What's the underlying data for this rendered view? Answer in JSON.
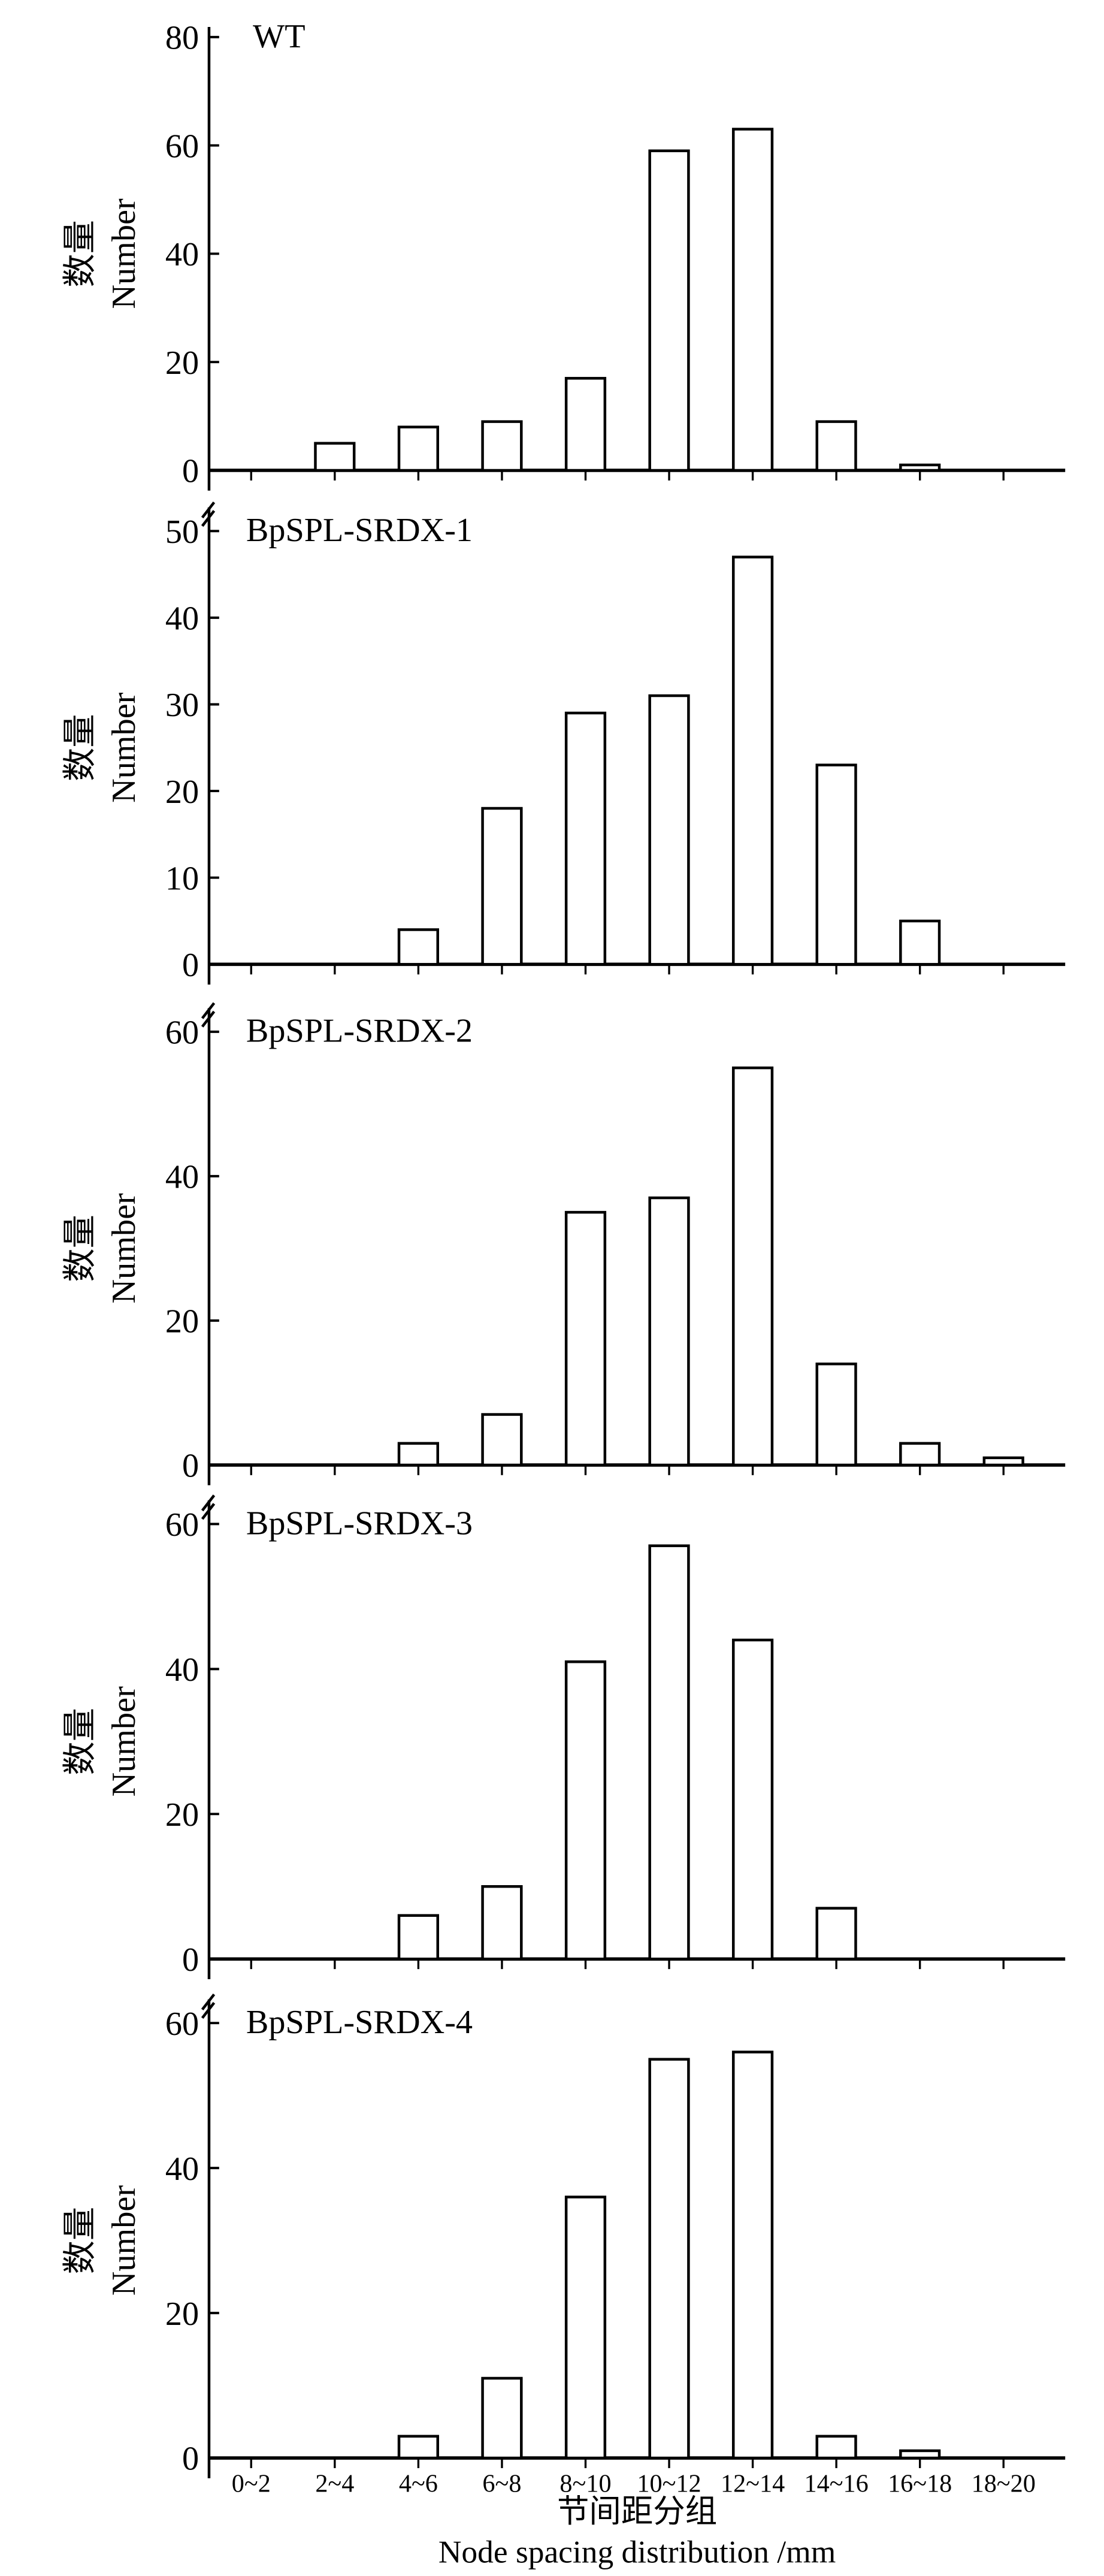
{
  "chart_data": [
    {
      "type": "bar",
      "title": "WT",
      "ylabel": "数量 Number",
      "ylim": [
        0,
        80
      ],
      "yticks": [
        0,
        20,
        40,
        60,
        80
      ],
      "categories": [
        "0~2",
        "2~4",
        "4~6",
        "6~8",
        "8~10",
        "10~12",
        "12~14",
        "14~16",
        "16~18",
        "18~20"
      ],
      "values": [
        0,
        5,
        8,
        9,
        17,
        59,
        63,
        9,
        1,
        0
      ]
    },
    {
      "type": "bar",
      "title": "BpSPL-SRDX-1",
      "ylabel": "数量 Number",
      "ylim": [
        0,
        50
      ],
      "yticks": [
        0,
        10,
        20,
        30,
        40,
        50
      ],
      "categories": [
        "0~2",
        "2~4",
        "4~6",
        "6~8",
        "8~10",
        "10~12",
        "12~14",
        "14~16",
        "16~18",
        "18~20"
      ],
      "values": [
        0,
        0,
        4,
        18,
        29,
        31,
        47,
        23,
        5,
        0
      ]
    },
    {
      "type": "bar",
      "title": "BpSPL-SRDX-2",
      "ylabel": "数量 Number",
      "ylim": [
        0,
        60
      ],
      "yticks": [
        0,
        20,
        40,
        60
      ],
      "categories": [
        "0~2",
        "2~4",
        "4~6",
        "6~8",
        "8~10",
        "10~12",
        "12~14",
        "14~16",
        "16~18",
        "18~20"
      ],
      "values": [
        0,
        0,
        3,
        7,
        35,
        37,
        55,
        14,
        3,
        1
      ]
    },
    {
      "type": "bar",
      "title": "BpSPL-SRDX-3",
      "ylabel": "数量 Number",
      "ylim": [
        0,
        60
      ],
      "yticks": [
        0,
        20,
        40,
        60
      ],
      "categories": [
        "0~2",
        "2~4",
        "4~6",
        "6~8",
        "8~10",
        "10~12",
        "12~14",
        "14~16",
        "16~18",
        "18~20"
      ],
      "values": [
        0,
        0,
        6,
        10,
        41,
        57,
        44,
        7,
        0,
        0
      ]
    },
    {
      "type": "bar",
      "title": "BpSPL-SRDX-4",
      "ylabel": "数量 Number",
      "ylim": [
        0,
        60
      ],
      "yticks": [
        0,
        20,
        40,
        60
      ],
      "categories": [
        "0~2",
        "2~4",
        "4~6",
        "6~8",
        "8~10",
        "10~12",
        "12~14",
        "14~16",
        "16~18",
        "18~20"
      ],
      "values": [
        0,
        0,
        3,
        11,
        36,
        55,
        56,
        3,
        1,
        0
      ]
    }
  ],
  "ylabel_cn": "数量",
  "ylabel_en": "Number",
  "xlabel_cn": "节间距分组",
  "xlabel_en": "Node spacing distribution /mm"
}
